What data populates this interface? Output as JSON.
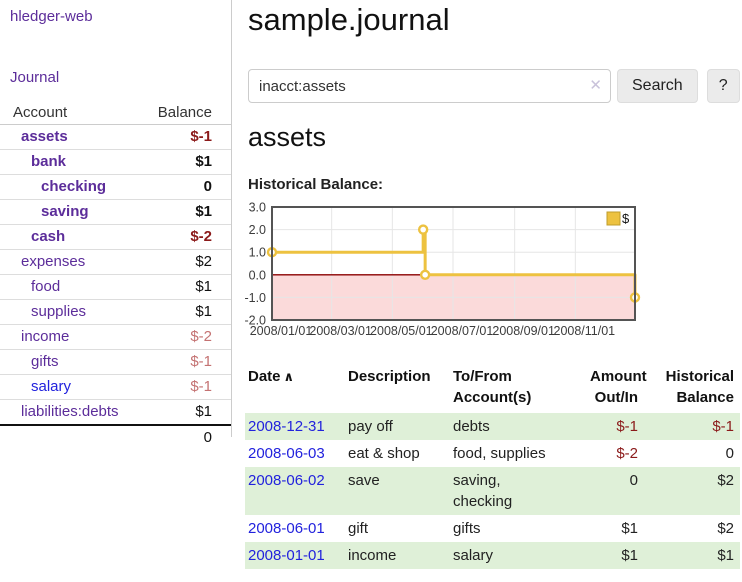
{
  "sidebar": {
    "brand": "hledger-web",
    "journal_link": "Journal",
    "accounts": {
      "col_account": "Account",
      "col_balance": "Balance",
      "rows": [
        {
          "name": "assets",
          "balance": "$-1"
        },
        {
          "name": "bank",
          "balance": "$1"
        },
        {
          "name": "checking",
          "balance": "0"
        },
        {
          "name": "saving",
          "balance": "$1"
        },
        {
          "name": "cash",
          "balance": "$-2"
        },
        {
          "name": "expenses",
          "balance": "$2"
        },
        {
          "name": "food",
          "balance": "$1"
        },
        {
          "name": "supplies",
          "balance": "$1"
        },
        {
          "name": "income",
          "balance": "$-2"
        },
        {
          "name": "gifts",
          "balance": "$-1"
        },
        {
          "name": "salary",
          "balance": "$-1"
        },
        {
          "name": "liabilities:debts",
          "balance": "$1"
        }
      ],
      "total": "0"
    }
  },
  "main": {
    "title": "sample.journal",
    "search": {
      "value": "inacct:assets",
      "button_label": "Search",
      "help_label": "?"
    },
    "account_heading": "assets",
    "chart_label": "Historical Balance:"
  },
  "icons": {
    "sort_asc": "∧",
    "clear": "✕"
  },
  "register": {
    "headers": [
      "Date",
      "Description",
      "To/From Account(s)",
      "Amount Out/In",
      "Historical Balance"
    ],
    "rows": [
      {
        "date": "2008-12-31",
        "description": "pay off",
        "accounts": "debts",
        "amount": "$-1",
        "balance": "$-1"
      },
      {
        "date": "2008-06-03",
        "description": "eat & shop",
        "accounts": "food, supplies",
        "amount": "$-2",
        "balance": "0"
      },
      {
        "date": "2008-06-02",
        "description": "save",
        "accounts": "saving,\nchecking",
        "amount": "0",
        "balance": "$2"
      },
      {
        "date": "2008-06-01",
        "description": "gift",
        "accounts": "gifts",
        "amount": "$1",
        "balance": "$2"
      },
      {
        "date": "2008-01-01",
        "description": "income",
        "accounts": "salary",
        "amount": "$1",
        "balance": "$1"
      }
    ]
  },
  "chart_data": {
    "type": "line",
    "title": "Historical Balance:",
    "step": true,
    "series": [
      {
        "name": "$",
        "points": [
          [
            "2008-01-01",
            1
          ],
          [
            "2008-06-01",
            2
          ],
          [
            "2008-06-03",
            0
          ],
          [
            "2008-12-31",
            -1
          ]
        ]
      }
    ],
    "x_tick_dates": [
      "2008-01-01",
      "2008-03-01",
      "2008-05-01",
      "2008-07-01",
      "2008-09-01",
      "2008-11-01"
    ],
    "x_tick_labels": [
      "2008/01/01",
      "2008/03/01",
      "2008/05/01",
      "2008/07/01",
      "2008/09/01",
      "2008/11/01"
    ],
    "y_ticks": [
      3.0,
      2.0,
      1.0,
      0.0,
      -1.0,
      -2.0
    ],
    "ylim": [
      -2,
      3
    ],
    "xlim": [
      "2008-01-01",
      "2008-12-31"
    ],
    "grid": true,
    "legend_position": "top-right",
    "line_color": "#edc240",
    "marker_fill": "#ffffff",
    "negative_region_fill": "#fbdada",
    "zero_line_color": "#8b0000",
    "border_color": "#545454",
    "gridline_color": "#e6e6e6"
  },
  "colors": {
    "accent_purple": "#5c2d9a",
    "link_blue": "#2222dd",
    "negative_strong": "#8b1a1a",
    "negative_muted": "#c47272",
    "row_stripe_green": "#dff0d8"
  }
}
